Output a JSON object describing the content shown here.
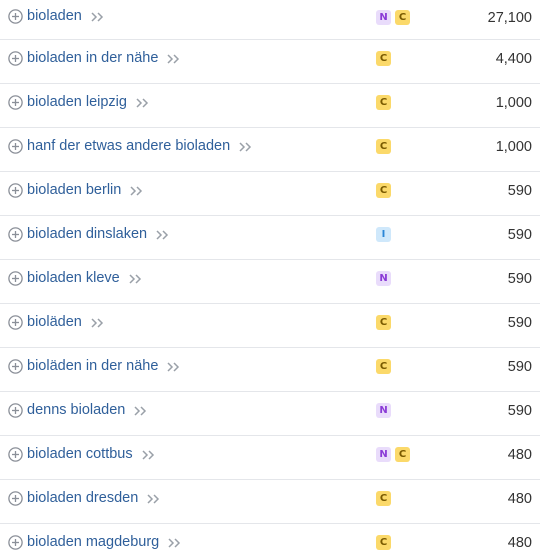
{
  "rows": [
    {
      "keyword": "bioladen",
      "intents": [
        "N",
        "C"
      ],
      "volume": "27,100"
    },
    {
      "keyword": "bioladen in der nähe",
      "intents": [
        "C"
      ],
      "volume": "4,400"
    },
    {
      "keyword": "bioladen leipzig",
      "intents": [
        "C"
      ],
      "volume": "1,000"
    },
    {
      "keyword": "hanf der etwas andere bioladen",
      "intents": [
        "C"
      ],
      "volume": "1,000"
    },
    {
      "keyword": "bioladen berlin",
      "intents": [
        "C"
      ],
      "volume": "590"
    },
    {
      "keyword": "bioladen dinslaken",
      "intents": [
        "I"
      ],
      "volume": "590"
    },
    {
      "keyword": "bioladen kleve",
      "intents": [
        "N"
      ],
      "volume": "590"
    },
    {
      "keyword": "bioläden",
      "intents": [
        "C"
      ],
      "volume": "590"
    },
    {
      "keyword": "bioläden in der nähe",
      "intents": [
        "C"
      ],
      "volume": "590"
    },
    {
      "keyword": "denns bioladen",
      "intents": [
        "N"
      ],
      "volume": "590"
    },
    {
      "keyword": "bioladen cottbus",
      "intents": [
        "N",
        "C"
      ],
      "volume": "480"
    },
    {
      "keyword": "bioladen dresden",
      "intents": [
        "C"
      ],
      "volume": "480"
    },
    {
      "keyword": "bioladen magdeburg",
      "intents": [
        "C"
      ],
      "volume": "480"
    }
  ],
  "icons": {
    "add": "plus-circle-icon",
    "open": "double-chevron-right-icon"
  },
  "colors": {
    "keyword": "#2f5f9a",
    "intent_N_bg": "#e9dcfb",
    "intent_C_bg": "#fbd96a",
    "intent_I_bg": "#cfe8fb",
    "divider": "#e4e6ea"
  }
}
